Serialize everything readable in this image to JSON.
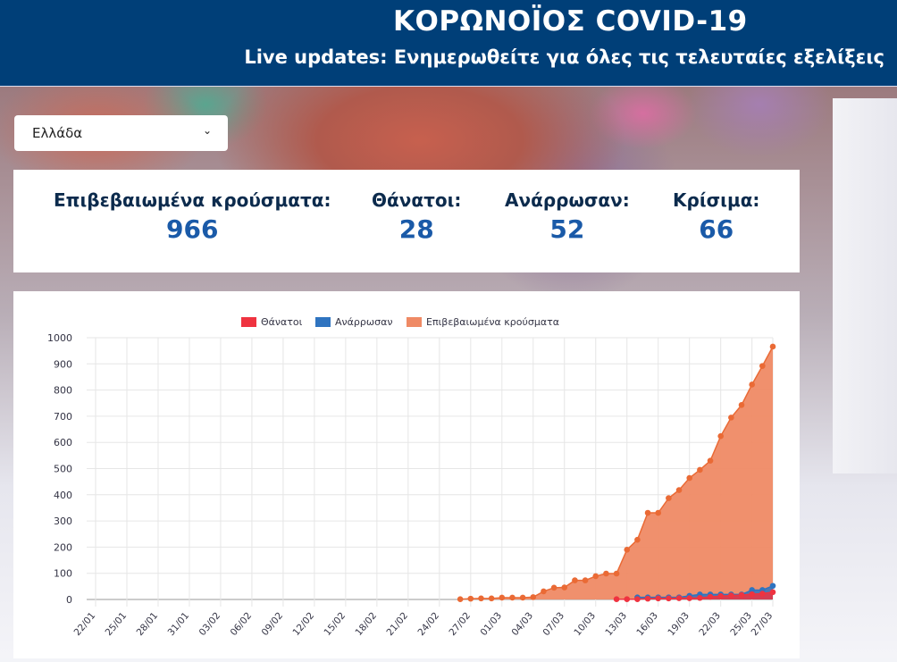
{
  "header": {
    "title": "ΚΟΡΩΝΟΪΟΣ COVID-19",
    "subtitle": "Live updates: Ενημερωθείτε για όλες τις τελευταίες εξελίξεις"
  },
  "country_select": {
    "value": "Ελλάδα"
  },
  "stats": [
    {
      "label": "Επιβεβαιωμένα κρούσματα:",
      "value": "966"
    },
    {
      "label": "Θάνατοι:",
      "value": "28"
    },
    {
      "label": "Ανάρρωσαν:",
      "value": "52"
    },
    {
      "label": "Κρίσιμα:",
      "value": "66"
    }
  ],
  "chart_data": {
    "type": "area",
    "start_date": "22/01",
    "x_tick_labels": [
      "22/01",
      "25/01",
      "28/01",
      "31/01",
      "03/02",
      "06/02",
      "09/02",
      "12/02",
      "15/02",
      "18/02",
      "21/02",
      "24/02",
      "27/02",
      "01/03",
      "04/03",
      "07/03",
      "10/03",
      "13/03",
      "16/03",
      "19/03",
      "22/03",
      "25/03",
      "27/03"
    ],
    "y_ticks": [
      0,
      100,
      200,
      300,
      400,
      500,
      600,
      700,
      800,
      900,
      1000
    ],
    "ylim": [
      0,
      1000
    ],
    "num_days": 66,
    "series": [
      {
        "name": "Θάνατοι",
        "color": "#ef3340",
        "start_day": 50,
        "values": [
          1,
          1,
          1,
          3,
          4,
          4,
          5,
          5,
          6,
          10,
          13,
          15,
          17,
          20,
          22,
          28
        ]
      },
      {
        "name": "Ανάρρωσαν",
        "color": "#2f74c0",
        "start_day": 52,
        "values": [
          8,
          8,
          8,
          8,
          8,
          14,
          19,
          19,
          19,
          19,
          19,
          36,
          36,
          52
        ]
      },
      {
        "name": "Επιβεβαιωμένα κρούσματα",
        "color": "#ef8a65",
        "line": "#ea6a35",
        "start_day": 35,
        "values": [
          1,
          3,
          4,
          4,
          7,
          7,
          7,
          9,
          31,
          45,
          46,
          73,
          73,
          89,
          99,
          99,
          190,
          228,
          331,
          331,
          387,
          418,
          464,
          495,
          530,
          624,
          695,
          743,
          821,
          892,
          966
        ]
      }
    ]
  }
}
